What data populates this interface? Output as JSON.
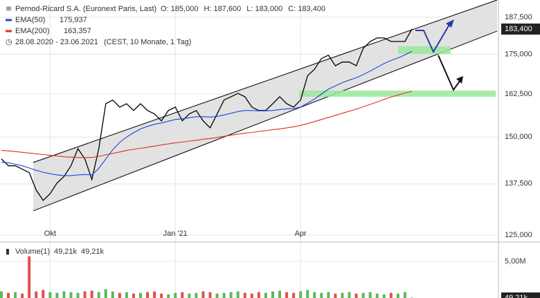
{
  "chart_data": {
    "type": "line",
    "title": "Pernod-Ricard S.A. (Euronext Paris, Last)",
    "quote": [
      "O: 185,000",
      "H: 187,600",
      "L: 183,000",
      "C: 183,400"
    ],
    "period": "28.08.2020 - 23.06.2021",
    "period_note": "(CEST, 10 Monate, 1 Tag)",
    "categories": [
      null,
      null,
      null,
      null,
      null,
      null,
      null,
      "Okt",
      null,
      null,
      null,
      null,
      null,
      null,
      null,
      null,
      null,
      null,
      null,
      null,
      null,
      null,
      null,
      null,
      null,
      "Jan '21",
      null,
      null,
      null,
      null,
      null,
      null,
      null,
      null,
      null,
      null,
      null,
      null,
      null,
      null,
      null,
      null,
      null,
      "Apr",
      null,
      null,
      null,
      null,
      null,
      null,
      null,
      null,
      null,
      null,
      null,
      null,
      null,
      null,
      null,
      null
    ],
    "log_scale": true,
    "ylim": [
      123.7,
      193.6
    ],
    "yticks": [
      {
        "value": 125,
        "label": "125,000"
      },
      {
        "value": 137.5,
        "label": "137,500"
      },
      {
        "value": 150,
        "label": "150,000"
      },
      {
        "value": 162.5,
        "label": "162,500"
      },
      {
        "value": 175,
        "label": "175,000"
      },
      {
        "value": 187.5,
        "label": "187,500"
      }
    ],
    "grid": true,
    "series": [
      {
        "name": "Pernod-Ricard S.A.",
        "color": "#000000",
        "last_label": "183,400",
        "values": [
          144.0,
          142.2,
          142.2,
          141.3,
          140.4,
          135.9,
          133.3,
          135.0,
          137.7,
          139.4,
          142.2,
          146.8,
          144.0,
          138.6,
          146.8,
          159.6,
          160.7,
          158.6,
          159.6,
          157.6,
          159.6,
          157.6,
          156.6,
          154.6,
          157.6,
          158.6,
          154.6,
          156.6,
          157.6,
          154.6,
          152.6,
          156.6,
          160.7,
          161.7,
          162.7,
          161.7,
          158.6,
          157.6,
          157.6,
          159.6,
          161.7,
          159.6,
          158.6,
          160.7,
          168.1,
          170.2,
          173.6,
          174.7,
          171.3,
          172.5,
          172.5,
          171.3,
          176.9,
          179.2,
          180.4,
          180.4,
          179.2,
          179.2,
          179.2,
          183.4
        ]
      },
      {
        "name": "EMA(50)",
        "color": "#2040e0",
        "last_label": "175,937",
        "values": [
          143.1,
          143.0,
          142.6,
          142.2,
          141.6,
          141.0,
          140.5,
          140.1,
          139.8,
          139.6,
          139.6,
          139.8,
          139.9,
          139.8,
          141.5,
          144.0,
          146.5,
          148.5,
          150.0,
          151.2,
          152.3,
          153.0,
          153.6,
          154.0,
          154.5,
          155.0,
          155.2,
          155.5,
          155.8,
          155.8,
          155.7,
          155.9,
          156.3,
          156.8,
          157.3,
          157.6,
          157.6,
          157.5,
          157.5,
          157.6,
          157.9,
          158.1,
          158.2,
          158.6,
          159.8,
          161.0,
          162.5,
          164.0,
          165.0,
          166.0,
          166.8,
          167.5,
          168.5,
          169.6,
          170.8,
          172.0,
          173.0,
          173.8,
          174.8,
          175.937
        ]
      },
      {
        "name": "EMA(200)",
        "color": "#e03020",
        "last_label": "163,357",
        "values": [
          146.3,
          146.2,
          146.0,
          145.8,
          145.6,
          145.4,
          145.2,
          145.0,
          144.8,
          144.6,
          144.5,
          144.4,
          144.4,
          144.4,
          144.7,
          145.1,
          145.5,
          145.9,
          146.3,
          146.6,
          146.9,
          147.2,
          147.5,
          147.8,
          148.1,
          148.4,
          148.6,
          148.9,
          149.1,
          149.4,
          149.6,
          149.9,
          150.2,
          150.5,
          150.8,
          151.1,
          151.3,
          151.6,
          151.8,
          152.1,
          152.3,
          152.6,
          152.9,
          153.3,
          153.8,
          154.4,
          155.0,
          155.6,
          156.2,
          156.8,
          157.4,
          158.0,
          158.7,
          159.4,
          160.1,
          160.9,
          161.6,
          162.2,
          162.8,
          163.357
        ]
      }
    ],
    "volume": {
      "name": "Volume(1)",
      "labels": [
        "49,21k",
        "49,21k"
      ],
      "last_label": "49,21k",
      "ylim": [
        0,
        7.17
      ],
      "yticks": [
        {
          "value": 5,
          "label": "5,00M"
        }
      ],
      "up_color": "#5cb85c",
      "down_color": "#e05050",
      "values": [
        0.9,
        0.7,
        0.8,
        0.6,
        5.7,
        0.9,
        1.1,
        0.8,
        0.7,
        0.9,
        0.8,
        0.7,
        0.9,
        1.0,
        0.8,
        1.2,
        0.9,
        0.7,
        0.8,
        0.6,
        0.7,
        0.8,
        0.9,
        0.6,
        0.5,
        0.7,
        0.8,
        0.6,
        0.7,
        0.9,
        0.8,
        0.6,
        0.7,
        0.8,
        0.9,
        0.7,
        0.6,
        0.8,
        0.7,
        0.9,
        1.0,
        0.8,
        0.7,
        0.9,
        1.1,
        0.8,
        0.7,
        0.8,
        0.6,
        0.7,
        0.8,
        0.6,
        0.7,
        0.8,
        0.6,
        0.5,
        0.7,
        0.6,
        0.8,
        0.05
      ]
    }
  }
}
